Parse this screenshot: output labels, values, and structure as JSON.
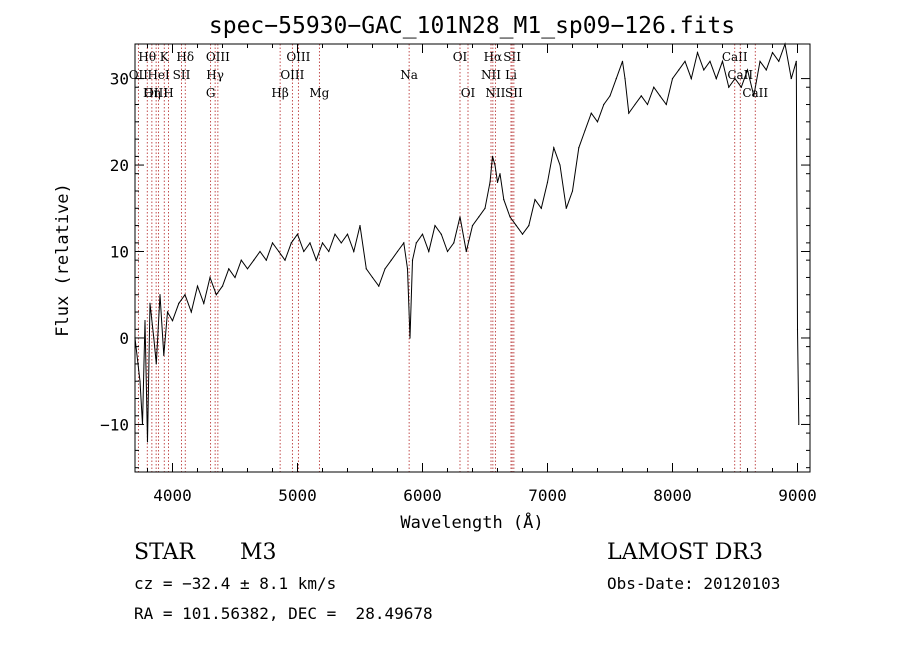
{
  "chart_data": {
    "type": "line",
    "title": "spec−55930−GAC_101N28_M1_sp09−126.fits",
    "xlabel": "Wavelength (Å)",
    "ylabel": "Flux (relative)",
    "xlim": [
      3700,
      9100
    ],
    "ylim": [
      -15.5,
      34
    ],
    "xticks": [
      4000,
      5000,
      6000,
      7000,
      8000,
      9000
    ],
    "yticks": [
      -10,
      0,
      10,
      20,
      30
    ],
    "ytick_labels": [
      "−10",
      "0",
      "10",
      "20",
      "30"
    ],
    "colors": {
      "line": "#000000",
      "marker": "#b22222"
    },
    "series": [
      {
        "name": "flux",
        "x": [
          3700,
          3740,
          3760,
          3780,
          3800,
          3820,
          3850,
          3870,
          3900,
          3930,
          3960,
          4000,
          4050,
          4100,
          4150,
          4200,
          4250,
          4300,
          4350,
          4400,
          4450,
          4500,
          4550,
          4600,
          4650,
          4700,
          4750,
          4800,
          4850,
          4900,
          4950,
          5000,
          5050,
          5100,
          5150,
          5200,
          5250,
          5300,
          5350,
          5400,
          5450,
          5500,
          5550,
          5600,
          5650,
          5700,
          5750,
          5800,
          5850,
          5880,
          5900,
          5920,
          5950,
          6000,
          6050,
          6100,
          6150,
          6200,
          6250,
          6300,
          6350,
          6400,
          6450,
          6500,
          6540,
          6560,
          6580,
          6600,
          6620,
          6650,
          6700,
          6750,
          6800,
          6850,
          6900,
          6950,
          7000,
          7050,
          7100,
          7150,
          7200,
          7250,
          7300,
          7350,
          7400,
          7450,
          7500,
          7550,
          7600,
          7620,
          7650,
          7700,
          7750,
          7800,
          7850,
          7900,
          7950,
          8000,
          8050,
          8100,
          8150,
          8200,
          8250,
          8300,
          8350,
          8400,
          8450,
          8500,
          8550,
          8600,
          8650,
          8700,
          8750,
          8800,
          8850,
          8900,
          8950,
          8990,
          9000,
          9010
        ],
        "y": [
          0,
          -5,
          -10,
          2,
          -12,
          4,
          0,
          -3,
          5,
          -2,
          3,
          2,
          4,
          5,
          3,
          6,
          4,
          7,
          5,
          6,
          8,
          7,
          9,
          8,
          9,
          10,
          9,
          11,
          10,
          9,
          11,
          12,
          10,
          11,
          9,
          11,
          10,
          12,
          11,
          12,
          10,
          13,
          8,
          7,
          6,
          8,
          9,
          10,
          11,
          8,
          0,
          9,
          11,
          12,
          10,
          13,
          12,
          10,
          11,
          14,
          10,
          13,
          14,
          15,
          18,
          21,
          20,
          18,
          19,
          16,
          14,
          13,
          12,
          13,
          16,
          15,
          18,
          22,
          20,
          15,
          17,
          22,
          24,
          26,
          25,
          27,
          28,
          30,
          32,
          30,
          26,
          27,
          28,
          27,
          29,
          28,
          27,
          30,
          31,
          32,
          30,
          33,
          31,
          32,
          30,
          32,
          29,
          30,
          29,
          31,
          28,
          32,
          31,
          33,
          32,
          34,
          30,
          32,
          1,
          -10
        ]
      }
    ],
    "line_markers": [
      {
        "label": "Hθ",
        "x": 3798,
        "row": 0
      },
      {
        "label": "OII",
        "x": 3727,
        "row": 1
      },
      {
        "label": "OIII",
        "x": 3869,
        "row": 2
      },
      {
        "label": "Hη",
        "x": 3835,
        "row": 2
      },
      {
        "label": "K",
        "x": 3934,
        "row": 0
      },
      {
        "label": "HeI",
        "x": 3889,
        "row": 1
      },
      {
        "label": "SII",
        "x": 4072,
        "row": 1
      },
      {
        "label": "H",
        "x": 3968,
        "row": 2
      },
      {
        "label": "Hδ",
        "x": 4102,
        "row": 0
      },
      {
        "label": "OIII",
        "x": 4363,
        "row": 0
      },
      {
        "label": "Hγ",
        "x": 4341,
        "row": 1
      },
      {
        "label": "G",
        "x": 4305,
        "row": 2
      },
      {
        "label": "Hβ",
        "x": 4861,
        "row": 2
      },
      {
        "label": "OIII",
        "x": 5007,
        "row": 0
      },
      {
        "label": "OIII",
        "x": 4959,
        "row": 1
      },
      {
        "label": "Mg",
        "x": 5175,
        "row": 2
      },
      {
        "label": "Na",
        "x": 5893,
        "row": 1
      },
      {
        "label": "OI",
        "x": 6300,
        "row": 0
      },
      {
        "label": "OI",
        "x": 6364,
        "row": 2
      },
      {
        "label": "Hα",
        "x": 6563,
        "row": 0
      },
      {
        "label": "NII",
        "x": 6548,
        "row": 1
      },
      {
        "label": "NII",
        "x": 6583,
        "row": 2
      },
      {
        "label": "SII",
        "x": 6717,
        "row": 0
      },
      {
        "label": "Li",
        "x": 6708,
        "row": 1
      },
      {
        "label": "SII",
        "x": 6731,
        "row": 2
      },
      {
        "label": "CaII",
        "x": 8498,
        "row": 0
      },
      {
        "label": "CaII",
        "x": 8542,
        "row": 1
      },
      {
        "label": "CaII",
        "x": 8662,
        "row": 2
      }
    ]
  },
  "info": {
    "object_class": "STAR",
    "subclass": "M3",
    "survey": "LAMOST DR3",
    "cz": "cz = −32.4 ± 8.1 km/s",
    "obs_date": "Obs-Date: 20120103",
    "coords": "RA = 101.56382, DEC =  28.49678"
  }
}
